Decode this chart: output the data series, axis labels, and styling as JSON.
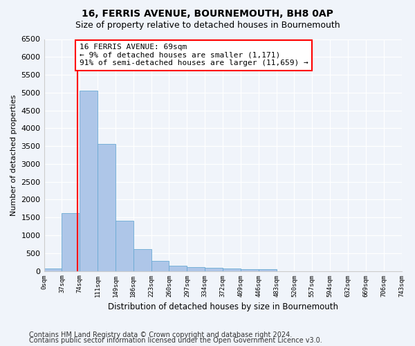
{
  "title": "16, FERRIS AVENUE, BOURNEMOUTH, BH8 0AP",
  "subtitle": "Size of property relative to detached houses in Bournemouth",
  "xlabel": "Distribution of detached houses by size in Bournemouth",
  "ylabel": "Number of detached properties",
  "bar_values": [
    75,
    1630,
    5060,
    3570,
    1410,
    615,
    285,
    140,
    110,
    80,
    60,
    50,
    50,
    0,
    0,
    0,
    0,
    0,
    0,
    0
  ],
  "bar_labels": [
    "0sqm",
    "37sqm",
    "74sqm",
    "111sqm",
    "149sqm",
    "186sqm",
    "223sqm",
    "260sqm",
    "297sqm",
    "334sqm",
    "372sqm",
    "409sqm",
    "446sqm",
    "483sqm",
    "520sqm",
    "557sqm",
    "594sqm",
    "632sqm",
    "669sqm",
    "706sqm",
    "743sqm"
  ],
  "bar_color": "#aec6e8",
  "bar_edge_color": "#6aaad4",
  "property_line_x": 1.865,
  "annotation_text": "16 FERRIS AVENUE: 69sqm\n← 9% of detached houses are smaller (1,171)\n91% of semi-detached houses are larger (11,659) →",
  "annotation_box_color": "white",
  "annotation_border_color": "red",
  "vline_color": "red",
  "ylim": [
    0,
    6500
  ],
  "yticks": [
    0,
    500,
    1000,
    1500,
    2000,
    2500,
    3000,
    3500,
    4000,
    4500,
    5000,
    5500,
    6000,
    6500
  ],
  "footer1": "Contains HM Land Registry data © Crown copyright and database right 2024.",
  "footer2": "Contains public sector information licensed under the Open Government Licence v3.0.",
  "background_color": "#f0f4fa",
  "plot_background_color": "#f0f4fa",
  "title_fontsize": 10,
  "subtitle_fontsize": 9,
  "annotation_fontsize": 8,
  "footer_fontsize": 7,
  "num_bars": 20,
  "bin_width": 37
}
